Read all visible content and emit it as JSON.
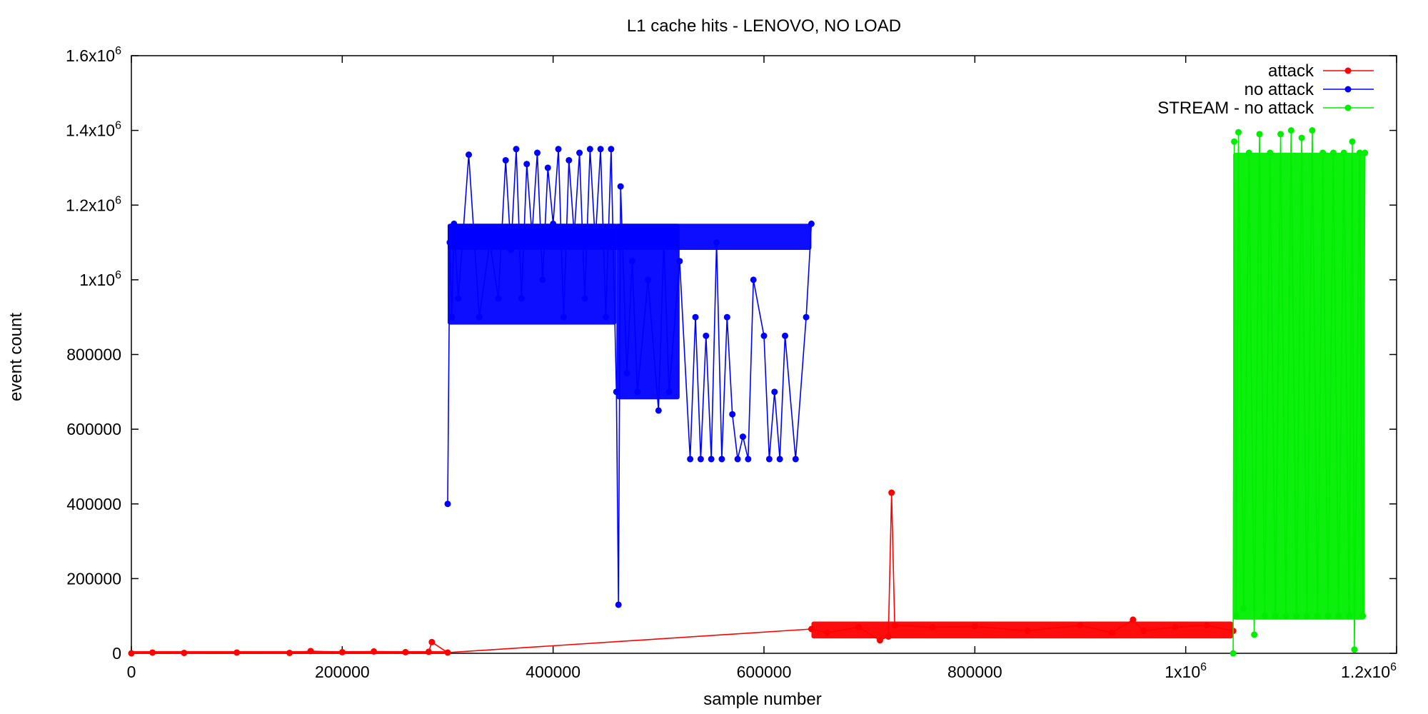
{
  "chart_data": {
    "type": "line",
    "title": "L1 cache hits - LENOVO, NO LOAD",
    "xlabel": "sample number",
    "ylabel": "event count",
    "xlim": [
      0,
      1200000
    ],
    "ylim": [
      0,
      1600000
    ],
    "grid": false,
    "legend_position": "top-right",
    "x_ticks": [
      {
        "value": 0,
        "label": "0"
      },
      {
        "value": 200000,
        "label": "200000"
      },
      {
        "value": 400000,
        "label": "400000"
      },
      {
        "value": 600000,
        "label": "600000"
      },
      {
        "value": 800000,
        "label": "800000"
      },
      {
        "value": 1000000,
        "label": "1x10",
        "exp": "6"
      },
      {
        "value": 1200000,
        "label": "1.2x10",
        "exp": "6"
      }
    ],
    "y_ticks": [
      {
        "value": 0,
        "label": "0"
      },
      {
        "value": 200000,
        "label": "200000"
      },
      {
        "value": 400000,
        "label": "400000"
      },
      {
        "value": 600000,
        "label": "600000"
      },
      {
        "value": 800000,
        "label": "800000"
      },
      {
        "value": 1000000,
        "label": "1x10",
        "exp": "6"
      },
      {
        "value": 1200000,
        "label": "1.2x10",
        "exp": "6"
      },
      {
        "value": 1400000,
        "label": "1.4x10",
        "exp": "6"
      },
      {
        "value": 1600000,
        "label": "1.6x10",
        "exp": "6"
      }
    ],
    "series": [
      {
        "name": "attack",
        "color": "#ff0000",
        "x": [
          0,
          20000,
          50000,
          100000,
          150000,
          170000,
          200000,
          230000,
          260000,
          282000,
          285000,
          300000,
          645000,
          660000,
          690000,
          710000,
          718000,
          721000,
          724000,
          760000,
          800000,
          850000,
          900000,
          930000,
          950000,
          960000,
          990000,
          1020000,
          1045000
        ],
        "y": [
          0,
          2000,
          1000,
          2000,
          1000,
          6000,
          3000,
          5000,
          3000,
          4000,
          30000,
          2000,
          65000,
          55000,
          70000,
          35000,
          45000,
          430000,
          75000,
          70000,
          72000,
          60000,
          75000,
          55000,
          90000,
          60000,
          70000,
          75000,
          60000
        ]
      },
      {
        "name": "no attack",
        "color": "#0000ff",
        "x": [
          300000,
          302000,
          304000,
          306000,
          310000,
          315000,
          320000,
          330000,
          340000,
          348000,
          355000,
          360000,
          365000,
          370000,
          375000,
          380000,
          385000,
          390000,
          395000,
          400000,
          405000,
          410000,
          415000,
          420000,
          425000,
          430000,
          435000,
          440000,
          445000,
          450000,
          455000,
          460000,
          462000,
          464000,
          470000,
          475000,
          480000,
          490000,
          500000,
          505000,
          510000,
          520000,
          530000,
          535000,
          540000,
          545000,
          550000,
          555000,
          560000,
          565000,
          570000,
          575000,
          580000,
          585000,
          590000,
          600000,
          605000,
          610000,
          615000,
          620000,
          630000,
          640000,
          645000
        ],
        "y": [
          400000,
          1100000,
          900000,
          1150000,
          950000,
          1140000,
          1335000,
          900000,
          1100000,
          950000,
          1320000,
          1080000,
          1350000,
          950000,
          1310000,
          1120000,
          1340000,
          1000000,
          1300000,
          1150000,
          1350000,
          900000,
          1320000,
          1120000,
          1340000,
          950000,
          1350000,
          1100000,
          1350000,
          900000,
          1350000,
          700000,
          130000,
          1250000,
          750000,
          1050000,
          700000,
          1000000,
          650000,
          1100000,
          700000,
          1050000,
          520000,
          900000,
          520000,
          850000,
          520000,
          1100000,
          520000,
          900000,
          640000,
          520000,
          580000,
          520000,
          1000000,
          850000,
          520000,
          700000,
          520000,
          850000,
          520000,
          900000,
          1150000
        ]
      },
      {
        "name": "STREAM - no attack",
        "color": "#00ee00",
        "x": [
          1045000,
          1046000,
          1048000,
          1050000,
          1055000,
          1060000,
          1065000,
          1070000,
          1075000,
          1080000,
          1085000,
          1090000,
          1095000,
          1100000,
          1105000,
          1110000,
          1115000,
          1120000,
          1125000,
          1130000,
          1135000,
          1140000,
          1145000,
          1150000,
          1155000,
          1158000,
          1160000,
          1165000,
          1168000,
          1170000
        ],
        "y": [
          0,
          1370000,
          100000,
          1395000,
          120000,
          1340000,
          50000,
          1390000,
          100000,
          1340000,
          100000,
          1390000,
          100000,
          1400000,
          100000,
          1380000,
          100000,
          1400000,
          100000,
          1340000,
          100000,
          1340000,
          100000,
          1340000,
          100000,
          1370000,
          10000,
          1340000,
          100000,
          1340000
        ]
      }
    ],
    "dense_bands": [
      {
        "series": "attack",
        "x0": 0,
        "x1": 300000,
        "y0": 0,
        "y1": 6000
      },
      {
        "series": "attack",
        "x0": 645000,
        "x1": 1045000,
        "y0": 40000,
        "y1": 85000
      },
      {
        "series": "no attack",
        "x0": 300000,
        "x1": 645000,
        "y0": 1080000,
        "y1": 1150000
      },
      {
        "series": "no attack",
        "x0": 300000,
        "x1": 460000,
        "y0": 880000,
        "y1": 1150000
      },
      {
        "series": "no attack",
        "x0": 460000,
        "x1": 520000,
        "y0": 680000,
        "y1": 1150000
      },
      {
        "series": "STREAM - no attack",
        "x0": 1045000,
        "x1": 1170000,
        "y0": 90000,
        "y1": 1340000
      }
    ]
  }
}
